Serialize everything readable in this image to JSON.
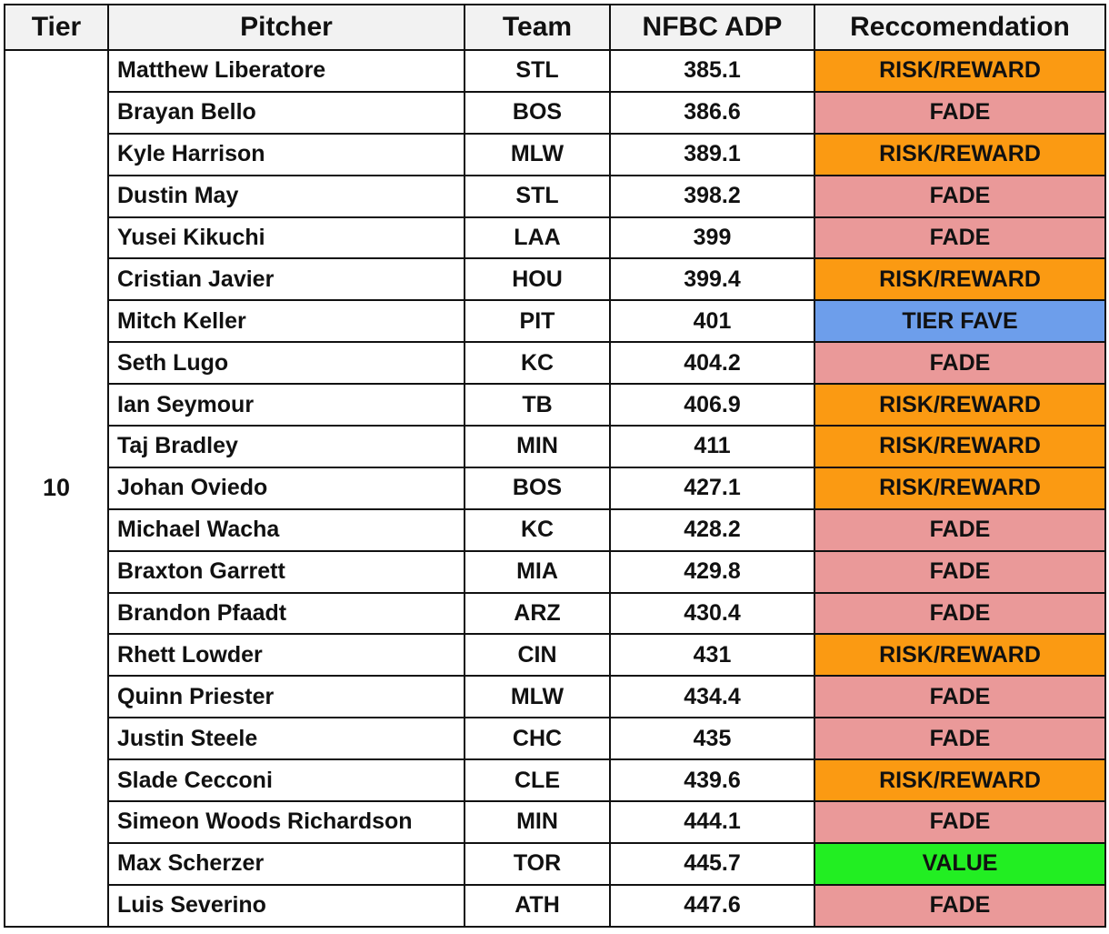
{
  "table": {
    "header": [
      "Tier",
      "Pitcher",
      "Team",
      "NFBC ADP",
      "Reccomendation"
    ],
    "tier": "10",
    "rows": [
      {
        "pitcher": "Matthew Liberatore",
        "team": "STL",
        "adp": 385.1,
        "rec": "RISK/REWARD",
        "color": "#fb9a12"
      },
      {
        "pitcher": "Brayan Bello",
        "team": "BOS",
        "adp": 386.6,
        "rec": "FADE",
        "color": "#ea9999"
      },
      {
        "pitcher": "Kyle Harrison",
        "team": "MLW",
        "adp": 389.1,
        "rec": "RISK/REWARD",
        "color": "#fb9a12"
      },
      {
        "pitcher": "Dustin May",
        "team": "STL",
        "adp": 398.2,
        "rec": "FADE",
        "color": "#ea9999"
      },
      {
        "pitcher": "Yusei Kikuchi",
        "team": "LAA",
        "adp": 399,
        "rec": "FADE",
        "color": "#ea9999"
      },
      {
        "pitcher": "Cristian Javier",
        "team": "HOU",
        "adp": 399.4,
        "rec": "RISK/REWARD",
        "color": "#fb9a12"
      },
      {
        "pitcher": "Mitch Keller",
        "team": "PIT",
        "adp": 401,
        "rec": "TIER FAVE",
        "color": "#6d9eeb"
      },
      {
        "pitcher": "Seth Lugo",
        "team": "KC",
        "adp": 404.2,
        "rec": "FADE",
        "color": "#ea9999"
      },
      {
        "pitcher": "Ian Seymour",
        "team": "TB",
        "adp": 406.9,
        "rec": "RISK/REWARD",
        "color": "#fb9a12"
      },
      {
        "pitcher": "Taj Bradley",
        "team": "MIN",
        "adp": 411,
        "rec": "RISK/REWARD",
        "color": "#fb9a12"
      },
      {
        "pitcher": "Johan Oviedo",
        "team": "BOS",
        "adp": 427.1,
        "rec": "RISK/REWARD",
        "color": "#fb9a12"
      },
      {
        "pitcher": "Michael Wacha",
        "team": "KC",
        "adp": 428.2,
        "rec": "FADE",
        "color": "#ea9999"
      },
      {
        "pitcher": "Braxton Garrett",
        "team": "MIA",
        "adp": 429.8,
        "rec": "FADE",
        "color": "#ea9999"
      },
      {
        "pitcher": "Brandon Pfaadt",
        "team": "ARZ",
        "adp": 430.4,
        "rec": "FADE",
        "color": "#ea9999"
      },
      {
        "pitcher": "Rhett Lowder",
        "team": "CIN",
        "adp": 431,
        "rec": "RISK/REWARD",
        "color": "#fb9a12"
      },
      {
        "pitcher": "Quinn Priester",
        "team": "MLW",
        "adp": 434.4,
        "rec": "FADE",
        "color": "#ea9999"
      },
      {
        "pitcher": "Justin Steele",
        "team": "CHC",
        "adp": 435,
        "rec": "FADE",
        "color": "#ea9999"
      },
      {
        "pitcher": "Slade Cecconi",
        "team": "CLE",
        "adp": 439.6,
        "rec": "RISK/REWARD",
        "color": "#fb9a12"
      },
      {
        "pitcher": "Simeon Woods Richardson",
        "team": "MIN",
        "adp": 444.1,
        "rec": "FADE",
        "color": "#ea9999"
      },
      {
        "pitcher": "Max Scherzer",
        "team": "TOR",
        "adp": 445.7,
        "rec": "VALUE",
        "color": "#22ee22"
      },
      {
        "pitcher": "Luis Severino",
        "team": "ATH",
        "adp": 447.6,
        "rec": "FADE",
        "color": "#ea9999"
      }
    ]
  }
}
